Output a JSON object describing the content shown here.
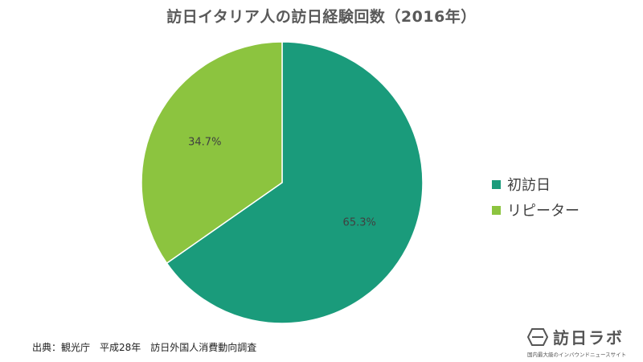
{
  "chart_data": {
    "type": "pie",
    "title": "訪日イタリア人の訪日経験回数（2016年）",
    "slices": [
      {
        "label": "初訪日",
        "value": 65.3,
        "display": "65.3%",
        "color": "#1a9b7b"
      },
      {
        "label": "リピーター",
        "value": 34.7,
        "display": "34.7%",
        "color": "#8cc43f"
      }
    ],
    "start_angle_deg": 0,
    "direction": "clockwise",
    "legend_position": "right"
  },
  "source": {
    "text": "出典：観光庁　平成28年　訪日外国人消費動向調査"
  },
  "brand": {
    "name": "訪日ラボ",
    "tagline": "国内最大級のインバウンドニュースサイト",
    "icon": "hexagon-logo-icon"
  }
}
